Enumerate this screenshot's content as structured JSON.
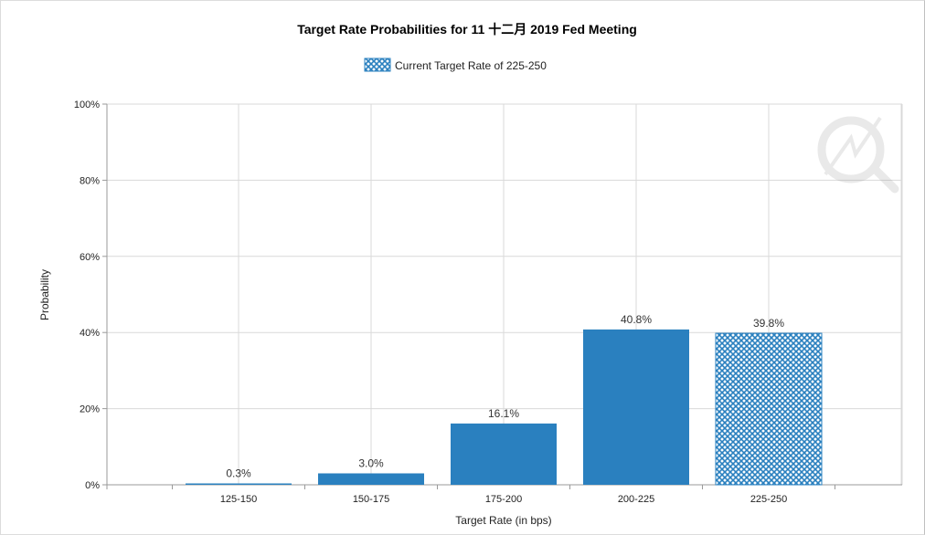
{
  "chart_data": {
    "type": "bar",
    "title": "Target Rate Probabilities for 11 十二月 2019 Fed Meeting",
    "xlabel": "Target Rate (in bps)",
    "ylabel": "Probability",
    "categories": [
      "125-150",
      "150-175",
      "175-200",
      "200-225",
      "225-250"
    ],
    "values": [
      0.3,
      3.0,
      16.1,
      40.8,
      39.8
    ],
    "value_labels": [
      "0.3%",
      "3.0%",
      "16.1%",
      "40.8%",
      "39.8%"
    ],
    "highlight_index": 4,
    "legend": {
      "label": "Current Target Rate of 225-250",
      "placement": "top-center"
    },
    "y_ticks": [
      "0%",
      "20%",
      "40%",
      "60%",
      "80%",
      "100%"
    ],
    "ylim": [
      0,
      100
    ],
    "grid": true,
    "colors": {
      "bar": "#2a80bf",
      "highlight_pattern": "#2a80bf",
      "background": "#ffffff"
    }
  }
}
